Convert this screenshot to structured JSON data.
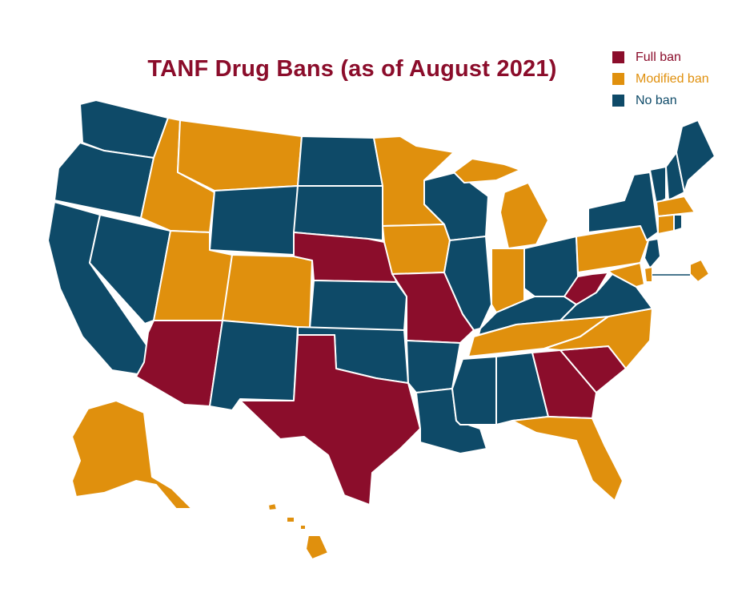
{
  "title": "TANF Drug Bans (as of August 2021)",
  "colors": {
    "full": "#8b0d2b",
    "modified": "#e0900d",
    "none": "#0e4a68"
  },
  "legend": [
    {
      "key": "full",
      "label": "Full ban"
    },
    {
      "key": "modified",
      "label": "Modified ban"
    },
    {
      "key": "none",
      "label": "No ban"
    }
  ],
  "states": {
    "WA": "none",
    "OR": "none",
    "CA": "none",
    "NV": "none",
    "ID": "modified",
    "MT": "modified",
    "WY": "none",
    "UT": "modified",
    "AZ": "full",
    "CO": "modified",
    "NM": "none",
    "ND": "none",
    "SD": "none",
    "NE": "full",
    "KS": "none",
    "OK": "none",
    "TX": "full",
    "MN": "modified",
    "IA": "modified",
    "MO": "full",
    "AR": "none",
    "LA": "none",
    "WI": "none",
    "IL": "none",
    "MI": "modified",
    "IN": "modified",
    "OH": "none",
    "KY": "none",
    "TN": "modified",
    "MS": "none",
    "AL": "none",
    "GA": "full",
    "FL": "modified",
    "SC": "full",
    "NC": "modified",
    "VA": "none",
    "WV": "full",
    "PA": "modified",
    "NY": "none",
    "VT": "none",
    "NH": "none",
    "ME": "none",
    "MA": "modified",
    "CT": "modified",
    "RI": "none",
    "NJ": "none",
    "DE": "modified",
    "MD": "modified",
    "DC": "modified",
    "AK": "modified",
    "HI": "modified"
  }
}
